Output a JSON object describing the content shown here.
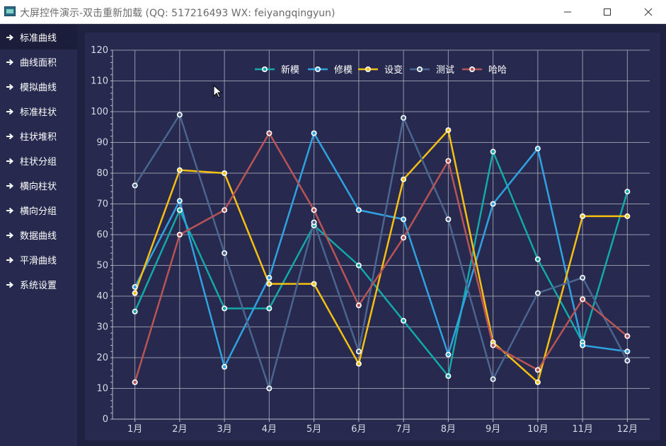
{
  "window": {
    "title": "大屏控件演示-双击重新加载 (QQ: 517216493  WX: feiyangqingyun)"
  },
  "sidebar": {
    "items": [
      {
        "label": "标准曲线",
        "active": true
      },
      {
        "label": "曲线面积",
        "active": false
      },
      {
        "label": "模拟曲线",
        "active": false
      },
      {
        "label": "标准柱状",
        "active": false
      },
      {
        "label": "柱状堆积",
        "active": false
      },
      {
        "label": "柱状分组",
        "active": false
      },
      {
        "label": "横向柱状",
        "active": false
      },
      {
        "label": "横向分组",
        "active": false
      },
      {
        "label": "数据曲线",
        "active": false
      },
      {
        "label": "平滑曲线",
        "active": false
      },
      {
        "label": "系统设置",
        "active": false
      }
    ]
  },
  "colors": {
    "background": "#1e2140",
    "panel": "#272a4e",
    "sidebar": "#272a4e",
    "sidebar_active": "#1b1d3a",
    "grid": "#b9bac7",
    "text": "#ffffff",
    "axis_text": "#d8d9e4"
  },
  "chart_data": {
    "type": "line",
    "categories": [
      "1月",
      "2月",
      "3月",
      "4月",
      "5月",
      "6月",
      "7月",
      "8月",
      "9月",
      "10月",
      "11月",
      "12月"
    ],
    "ylim": [
      0,
      120
    ],
    "yticks": [
      0,
      10,
      20,
      30,
      40,
      50,
      60,
      70,
      80,
      90,
      100,
      110,
      120
    ],
    "grid": true,
    "legend_position": "top-center",
    "series": [
      {
        "name": "新模",
        "color": "#12a9a9",
        "values": [
          35,
          68,
          36,
          36,
          63,
          50,
          32,
          14,
          87,
          52,
          25,
          74
        ]
      },
      {
        "name": "修模",
        "color": "#2fa3e1",
        "values": [
          43,
          71,
          17,
          46,
          93,
          68,
          65,
          21,
          70,
          88,
          24,
          22
        ]
      },
      {
        "name": "设变",
        "color": "#f5c012",
        "values": [
          41,
          81,
          80,
          44,
          44,
          18,
          78,
          94,
          25,
          12,
          66,
          66
        ]
      },
      {
        "name": "测试",
        "color": "#4a6590",
        "values": [
          76,
          99,
          54,
          10,
          64,
          22,
          98,
          65,
          13,
          41,
          46,
          19
        ]
      },
      {
        "name": "哈哈",
        "color": "#b85456",
        "values": [
          12,
          60,
          68,
          93,
          68,
          37,
          59,
          84,
          24,
          16,
          39,
          27
        ]
      }
    ]
  }
}
